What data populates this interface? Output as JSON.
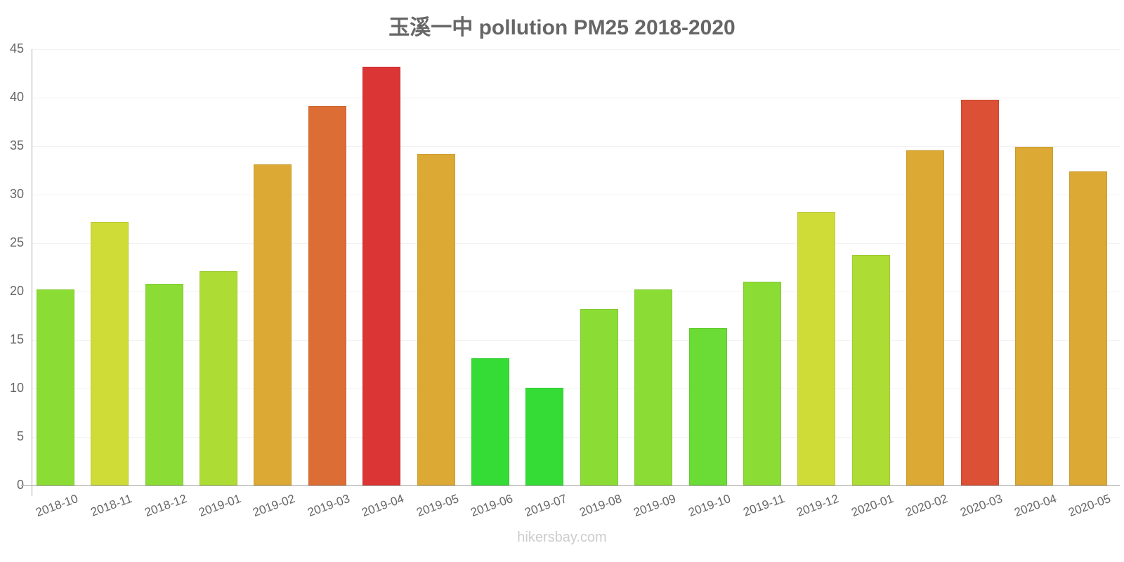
{
  "chart_data": {
    "type": "bar",
    "title": "玉溪一中 pollution PM25 2018-2020",
    "xlabel": "",
    "ylabel": "",
    "ylim": [
      0,
      45
    ],
    "yticks": [
      0,
      5,
      10,
      15,
      20,
      25,
      30,
      35,
      40,
      45
    ],
    "grid": true,
    "legend": null,
    "categories": [
      "2018-10",
      "2018-11",
      "2018-12",
      "2019-01",
      "2019-02",
      "2019-03",
      "2019-04",
      "2019-05",
      "2019-06",
      "2019-07",
      "2019-08",
      "2019-09",
      "2019-10",
      "2019-11",
      "2019-12",
      "2020-01",
      "2020-02",
      "2020-03",
      "2020-04",
      "2020-05"
    ],
    "values": [
      20.2,
      27.2,
      20.8,
      22.1,
      33.1,
      39.1,
      43.2,
      34.2,
      13.1,
      10.1,
      18.2,
      20.2,
      16.2,
      21.0,
      28.2,
      23.8,
      34.6,
      39.8,
      34.9,
      32.4
    ],
    "colors": [
      "#8bdc35",
      "#cfdc37",
      "#8bdc35",
      "#addc35",
      "#dca935",
      "#dc6e35",
      "#dc3535",
      "#dca935",
      "#35dc35",
      "#35dc35",
      "#8bdc35",
      "#8bdc35",
      "#6adc35",
      "#8bdc35",
      "#cfdc37",
      "#addc35",
      "#dca935",
      "#dc5035",
      "#dca935",
      "#dca935"
    ]
  },
  "watermark": "hikersbay.com"
}
